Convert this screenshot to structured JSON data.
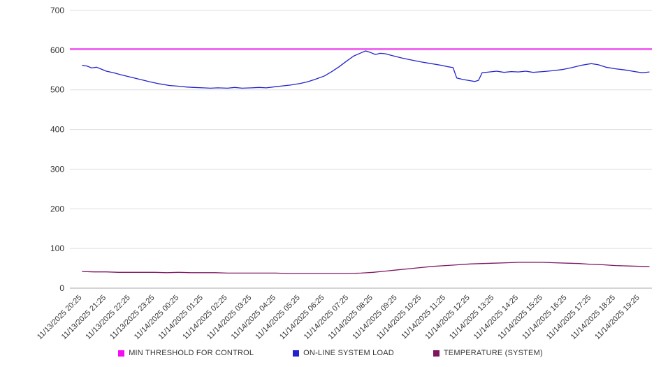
{
  "chart_data": {
    "type": "line",
    "title": "",
    "xlabel": "",
    "ylabel": "",
    "grid": true,
    "legend_position": "bottom",
    "y_range": [
      0,
      700
    ],
    "y_ticks": [
      0,
      100,
      200,
      300,
      400,
      500,
      600,
      700
    ],
    "categories": [
      "11/13/2025 20:25",
      "11/13/2025 21:25",
      "11/13/2025 22:25",
      "11/13/2025 23:25",
      "11/14/2025 00:25",
      "11/14/2025 01:25",
      "11/14/2025 02:25",
      "11/14/2025 03:25",
      "11/14/2025 04:25",
      "11/14/2025 05:25",
      "11/14/2025 06:25",
      "11/14/2025 07:25",
      "11/14/2025 08:25",
      "11/14/2025 09:25",
      "11/14/2025 10:25",
      "11/14/2025 11:25",
      "11/14/2025 12:25",
      "11/14/2025 13:25",
      "11/14/2025 14:25",
      "11/14/2025 15:25",
      "11/14/2025 16:25",
      "11/14/2025 17:25",
      "11/14/2025 18:25",
      "11/14/2025 19:25"
    ],
    "series": [
      {
        "name": "MIN THRESHOLD FOR CONTROL",
        "color": "#f20df2",
        "kind": "hline",
        "value": 603
      },
      {
        "name": "ON-LINE SYSTEM LOAD",
        "color": "#2323cd",
        "kind": "line",
        "points": [
          [
            0,
            562
          ],
          [
            0.2,
            560
          ],
          [
            0.4,
            555
          ],
          [
            0.6,
            557
          ],
          [
            0.8,
            552
          ],
          [
            1,
            547
          ],
          [
            1.3,
            543
          ],
          [
            1.6,
            538
          ],
          [
            2,
            532
          ],
          [
            2.4,
            526
          ],
          [
            2.8,
            520
          ],
          [
            3.2,
            515
          ],
          [
            3.6,
            511
          ],
          [
            4,
            509
          ],
          [
            4.3,
            507
          ],
          [
            4.6,
            506
          ],
          [
            5,
            505
          ],
          [
            5.3,
            504
          ],
          [
            5.6,
            505
          ],
          [
            6,
            504
          ],
          [
            6.3,
            506
          ],
          [
            6.6,
            504
          ],
          [
            7,
            505
          ],
          [
            7.3,
            506
          ],
          [
            7.6,
            505
          ],
          [
            8,
            508
          ],
          [
            8.3,
            510
          ],
          [
            8.6,
            512
          ],
          [
            9,
            516
          ],
          [
            9.3,
            520
          ],
          [
            9.6,
            526
          ],
          [
            10,
            535
          ],
          [
            10.3,
            546
          ],
          [
            10.6,
            558
          ],
          [
            10.9,
            572
          ],
          [
            11.2,
            585
          ],
          [
            11.5,
            593
          ],
          [
            11.7,
            598
          ],
          [
            11.9,
            594
          ],
          [
            12.1,
            589
          ],
          [
            12.3,
            592
          ],
          [
            12.5,
            591
          ],
          [
            12.8,
            586
          ],
          [
            13.2,
            580
          ],
          [
            13.6,
            575
          ],
          [
            14,
            570
          ],
          [
            14.4,
            566
          ],
          [
            14.8,
            562
          ],
          [
            15.1,
            558
          ],
          [
            15.3,
            556
          ],
          [
            15.45,
            530
          ],
          [
            15.7,
            526
          ],
          [
            16,
            523
          ],
          [
            16.2,
            521
          ],
          [
            16.35,
            524
          ],
          [
            16.5,
            543
          ],
          [
            16.8,
            545
          ],
          [
            17.1,
            547
          ],
          [
            17.4,
            544
          ],
          [
            17.7,
            546
          ],
          [
            18,
            545
          ],
          [
            18.3,
            547
          ],
          [
            18.6,
            544
          ],
          [
            19,
            546
          ],
          [
            19.4,
            548
          ],
          [
            19.8,
            551
          ],
          [
            20.2,
            556
          ],
          [
            20.6,
            562
          ],
          [
            21,
            566
          ],
          [
            21.3,
            563
          ],
          [
            21.6,
            557
          ],
          [
            22,
            553
          ],
          [
            22.4,
            550
          ],
          [
            22.8,
            546
          ],
          [
            23.1,
            543
          ],
          [
            23.4,
            545
          ]
        ]
      },
      {
        "name": "TEMPERATURE (SYSTEM)",
        "color": "#7d1660",
        "kind": "line",
        "points": [
          [
            0,
            42
          ],
          [
            0.5,
            41
          ],
          [
            1,
            41
          ],
          [
            1.5,
            40
          ],
          [
            2,
            40
          ],
          [
            2.5,
            40
          ],
          [
            3,
            40
          ],
          [
            3.5,
            39
          ],
          [
            4,
            40
          ],
          [
            4.5,
            39
          ],
          [
            5,
            39
          ],
          [
            5.5,
            39
          ],
          [
            6,
            38
          ],
          [
            6.5,
            38
          ],
          [
            7,
            38
          ],
          [
            7.5,
            38
          ],
          [
            8,
            38
          ],
          [
            8.5,
            37
          ],
          [
            9,
            37
          ],
          [
            9.5,
            37
          ],
          [
            10,
            37
          ],
          [
            10.5,
            37
          ],
          [
            11,
            37
          ],
          [
            11.5,
            38
          ],
          [
            12,
            40
          ],
          [
            12.5,
            43
          ],
          [
            13,
            46
          ],
          [
            13.5,
            49
          ],
          [
            14,
            52
          ],
          [
            14.5,
            55
          ],
          [
            15,
            57
          ],
          [
            15.5,
            59
          ],
          [
            16,
            61
          ],
          [
            16.5,
            62
          ],
          [
            17,
            63
          ],
          [
            17.5,
            64
          ],
          [
            18,
            65
          ],
          [
            18.5,
            65
          ],
          [
            19,
            65
          ],
          [
            19.5,
            64
          ],
          [
            20,
            63
          ],
          [
            20.5,
            62
          ],
          [
            21,
            60
          ],
          [
            21.5,
            59
          ],
          [
            22,
            57
          ],
          [
            22.5,
            56
          ],
          [
            23,
            55
          ],
          [
            23.4,
            54
          ]
        ]
      }
    ]
  },
  "colors": {
    "grid": "#dddddd",
    "axis": "#aaaaaa",
    "tick_text": "#333333"
  }
}
